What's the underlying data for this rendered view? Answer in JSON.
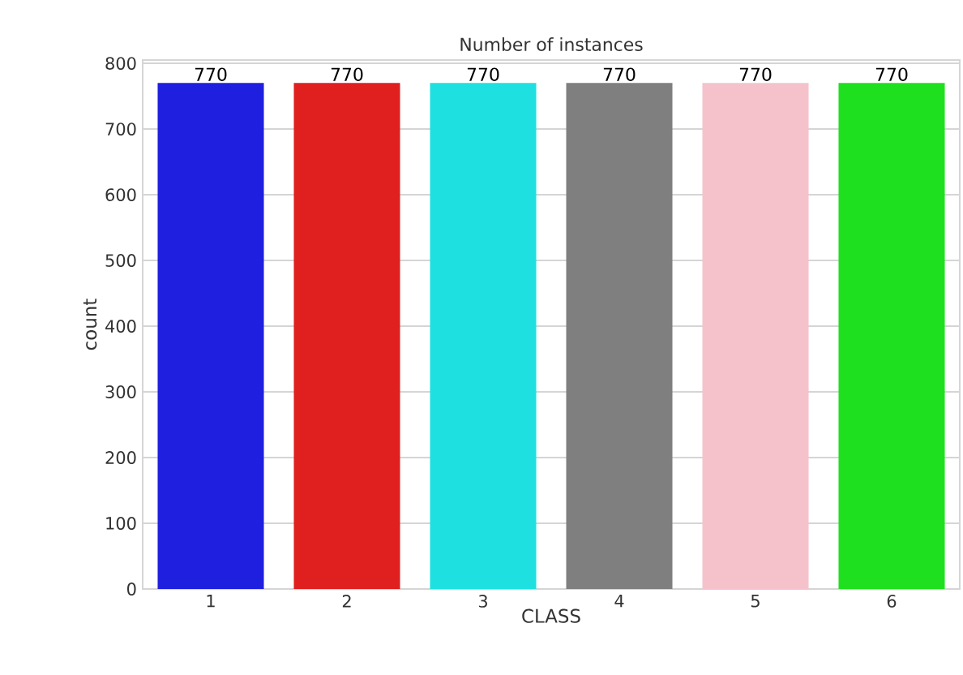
{
  "chart_data": {
    "type": "bar",
    "title": "Number of instances",
    "xlabel": "CLASS",
    "ylabel": "count",
    "categories": [
      "1",
      "2",
      "3",
      "4",
      "5",
      "6"
    ],
    "values": [
      770,
      770,
      770,
      770,
      770,
      770
    ],
    "colors": [
      "#1f1fe0",
      "#e01f1f",
      "#1fe0e0",
      "#7f7f7f",
      "#f5c2cb",
      "#1fe01f"
    ],
    "ylim": [
      0,
      805
    ],
    "yticks": [
      0,
      100,
      200,
      300,
      400,
      500,
      600,
      700,
      800
    ],
    "grid": "y",
    "data_labels": true
  }
}
